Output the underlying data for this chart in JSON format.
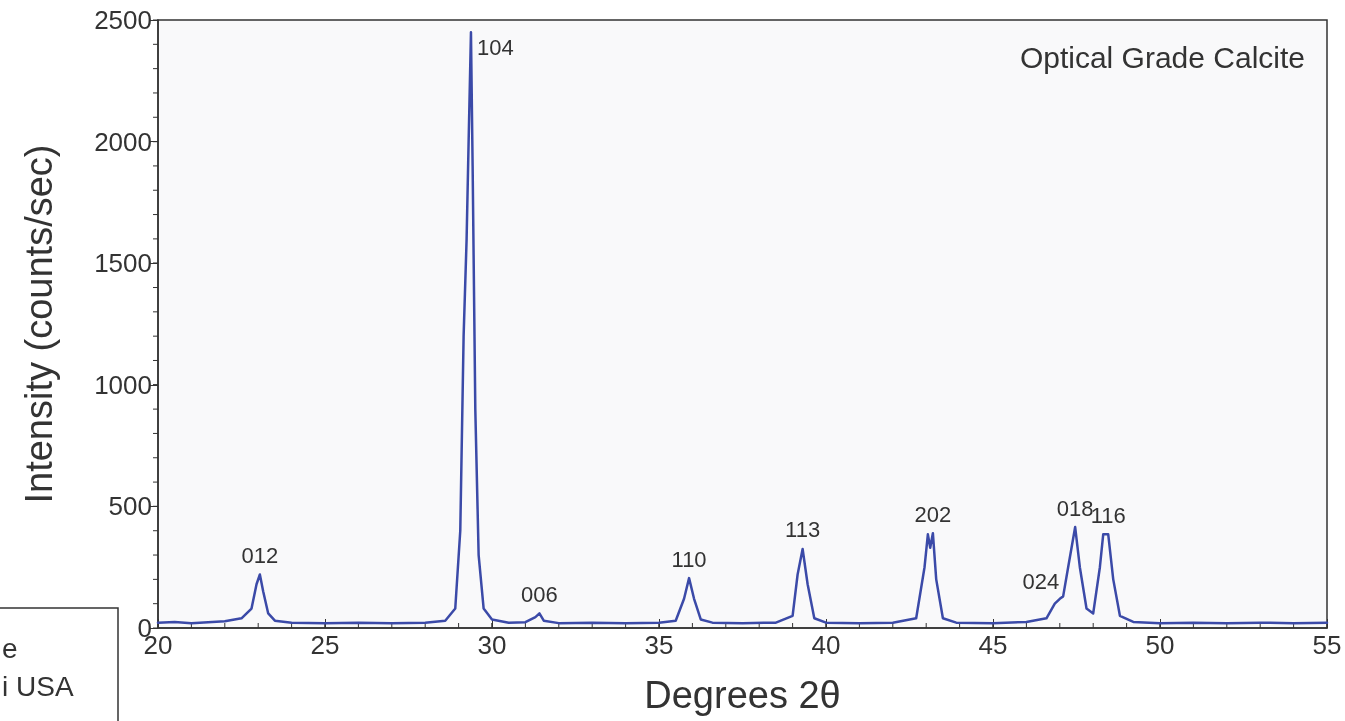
{
  "chart_data": {
    "type": "line",
    "title": "Optical Grade Calcite",
    "xlabel": "Degrees 2θ",
    "ylabel": "Intensity (counts/sec)",
    "xlim": [
      20,
      55
    ],
    "xticks": [
      20,
      25,
      30,
      35,
      40,
      45,
      50,
      55
    ],
    "ylim": [
      0,
      2500
    ],
    "yticks": [
      0,
      500,
      1000,
      1500,
      2000,
      2500
    ],
    "grid": false,
    "marker": "none",
    "line_style": "solid",
    "series": [
      {
        "color": "#3b4aa8",
        "x": [
          20,
          20.5,
          21,
          21.5,
          22,
          22.5,
          22.8,
          22.95,
          23.05,
          23.15,
          23.3,
          23.5,
          24,
          25,
          26,
          27,
          28,
          28.6,
          28.9,
          29.05,
          29.15,
          29.24,
          29.3,
          29.37,
          29.42,
          29.5,
          29.6,
          29.75,
          30,
          30.5,
          31,
          31.3,
          31.42,
          31.55,
          32,
          33,
          34,
          35,
          35.5,
          35.75,
          35.9,
          36.05,
          36.25,
          36.6,
          37.5,
          38.5,
          39,
          39.15,
          39.3,
          39.45,
          39.65,
          40,
          41,
          42,
          42.7,
          42.95,
          43.05,
          43.12,
          43.2,
          43.3,
          43.5,
          43.9,
          45,
          46,
          46.6,
          46.85,
          47,
          47.1,
          47.25,
          47.46,
          47.6,
          47.8,
          48,
          48.2,
          48.3,
          48.45,
          48.6,
          48.8,
          49.2,
          50,
          51,
          52,
          53,
          54,
          55
        ],
        "values": [
          22,
          25,
          20,
          24,
          28,
          40,
          80,
          180,
          220,
          150,
          60,
          30,
          22,
          20,
          22,
          20,
          22,
          30,
          80,
          400,
          1200,
          1600,
          2000,
          2450,
          1900,
          900,
          300,
          80,
          35,
          22,
          24,
          45,
          60,
          30,
          20,
          22,
          20,
          22,
          30,
          120,
          205,
          120,
          35,
          22,
          20,
          22,
          50,
          220,
          325,
          180,
          40,
          22,
          20,
          22,
          40,
          250,
          385,
          330,
          390,
          200,
          40,
          22,
          20,
          25,
          40,
          100,
          120,
          130,
          250,
          415,
          250,
          80,
          60,
          250,
          385,
          385,
          200,
          50,
          25,
          20,
          22,
          20,
          22,
          20,
          22
        ]
      }
    ],
    "annotations": [
      {
        "text": "012",
        "x": 23.05,
        "y": 220
      },
      {
        "text": "104",
        "x": 29.37,
        "y": 2450
      },
      {
        "text": "006",
        "x": 31.42,
        "y": 60
      },
      {
        "text": "110",
        "x": 35.9,
        "y": 205
      },
      {
        "text": "113",
        "x": 39.3,
        "y": 325
      },
      {
        "text": "202",
        "x": 43.2,
        "y": 390
      },
      {
        "text": "024",
        "x": 47.1,
        "y": 130
      },
      {
        "text": "018",
        "x": 47.46,
        "y": 415
      },
      {
        "text": "116",
        "x": 48.45,
        "y": 385
      },
      "e",
      "i USA"
    ]
  }
}
